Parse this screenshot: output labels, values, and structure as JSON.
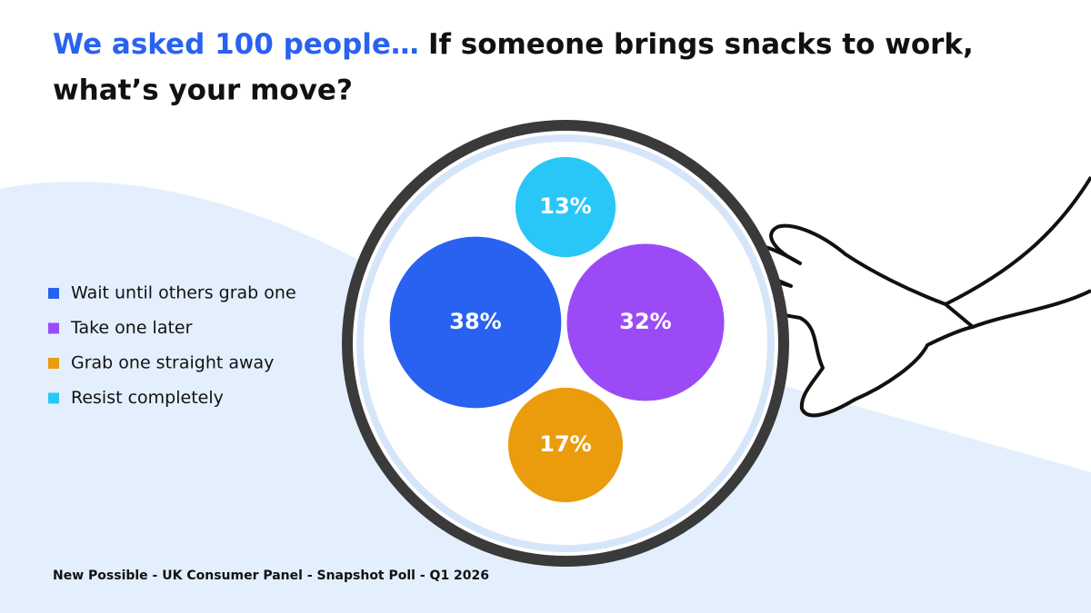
{
  "chart_data": {
    "type": "bubble",
    "title": {
      "highlight": "We asked 100 people…",
      "lines": [
        "If someone brings snacks to work,",
        "what’s your move?"
      ]
    },
    "categories": [
      "Wait until others grab one",
      "Take one later",
      "Grab one straight away",
      "Resist completely"
    ],
    "values": [
      38,
      32,
      17,
      13
    ],
    "value_labels": [
      "38%",
      "32%",
      "17%",
      "13%"
    ],
    "colors": [
      "#2962f0",
      "#9b4bf5",
      "#eb9c0c",
      "#29c7f7"
    ],
    "source": "New Possible - UK Consumer Panel - Snapshot Poll - Q1 2026"
  }
}
